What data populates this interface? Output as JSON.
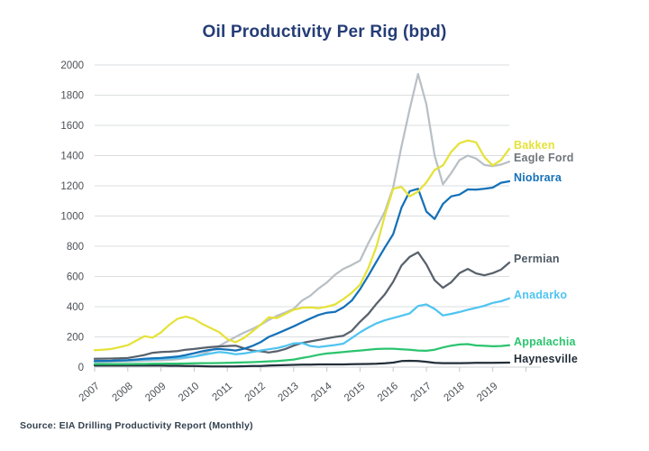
{
  "title": "Oil Productivity Per Rig (bpd)",
  "source": "Source: EIA Drilling Productivity Report (Monthly)",
  "colors": {
    "title_text": "#243d76",
    "axis_text": "#4b5157",
    "gridline": "#dadde0",
    "axis_line": "#ccd0d4",
    "tick_mark": "#c2c6ca",
    "source_text": "#33414f",
    "background": "#ffffff"
  },
  "chart_data": {
    "type": "line",
    "title": "Oil Productivity Per Rig (bpd)",
    "xlabel": "",
    "ylabel": "",
    "ylim": [
      0,
      2000
    ],
    "xlim": [
      2007,
      2019.5
    ],
    "y_ticks": [
      0,
      200,
      400,
      600,
      800,
      1000,
      1200,
      1400,
      1600,
      1800,
      2000
    ],
    "x_ticks": [
      "2007",
      "2008",
      "2009",
      "2010",
      "2011",
      "2012",
      "2013",
      "2014",
      "2015",
      "2016",
      "2017",
      "2018",
      "2019"
    ],
    "grid": "horizontal",
    "legend_position": "right-of-line-ends",
    "x": [
      2007,
      2007.25,
      2007.5,
      2007.75,
      2008,
      2008.25,
      2008.5,
      2008.75,
      2009,
      2009.25,
      2009.5,
      2009.75,
      2010,
      2010.25,
      2010.5,
      2010.75,
      2011,
      2011.25,
      2011.5,
      2011.75,
      2012,
      2012.25,
      2012.5,
      2012.75,
      2013,
      2013.25,
      2013.5,
      2013.75,
      2014,
      2014.25,
      2014.5,
      2014.75,
      2015,
      2015.25,
      2015.5,
      2015.75,
      2016,
      2016.25,
      2016.5,
      2016.75,
      2017,
      2017.25,
      2017.5,
      2017.75,
      2018,
      2018.25,
      2018.5,
      2018.75,
      2019,
      2019.25,
      2019.5
    ],
    "series": [
      {
        "name": "Bakken",
        "color": "#e5e239",
        "label_color": "#e5e239",
        "values": [
          112,
          115,
          120,
          132,
          145,
          175,
          205,
          195,
          230,
          280,
          320,
          335,
          318,
          285,
          258,
          232,
          185,
          165,
          192,
          235,
          280,
          330,
          325,
          352,
          380,
          392,
          396,
          390,
          400,
          415,
          450,
          492,
          545,
          655,
          800,
          1005,
          1180,
          1193,
          1130,
          1162,
          1222,
          1305,
          1335,
          1425,
          1482,
          1500,
          1488,
          1390,
          1335,
          1370,
          1445
        ]
      },
      {
        "name": "Eagle Ford",
        "color": "#b9c0c5",
        "label_color": "#6f767c",
        "values": [
          35,
          35,
          36,
          37,
          38,
          40,
          42,
          44,
          45,
          48,
          52,
          60,
          70,
          88,
          110,
          140,
          170,
          200,
          228,
          252,
          280,
          312,
          340,
          362,
          385,
          440,
          472,
          520,
          560,
          612,
          650,
          676,
          705,
          820,
          925,
          1030,
          1190,
          1460,
          1710,
          1940,
          1740,
          1400,
          1210,
          1285,
          1370,
          1400,
          1380,
          1338,
          1330,
          1340,
          1360
        ]
      },
      {
        "name": "Niobrara",
        "color": "#1471b8",
        "label_color": "#1471b8",
        "values": [
          40,
          41,
          42,
          44,
          46,
          50,
          55,
          58,
          60,
          65,
          70,
          80,
          92,
          105,
          115,
          120,
          116,
          110,
          121,
          140,
          165,
          200,
          222,
          246,
          270,
          296,
          321,
          345,
          360,
          366,
          395,
          440,
          515,
          605,
          700,
          792,
          880,
          1055,
          1165,
          1180,
          1030,
          980,
          1080,
          1130,
          1142,
          1176,
          1175,
          1180,
          1188,
          1220,
          1230
        ]
      },
      {
        "name": "Permian",
        "color": "#58616c",
        "label_color": "#4e5a64",
        "values": [
          55,
          56,
          57,
          58,
          60,
          70,
          80,
          95,
          100,
          102,
          106,
          115,
          120,
          127,
          133,
          137,
          140,
          142,
          125,
          110,
          105,
          97,
          105,
          120,
          142,
          160,
          170,
          180,
          190,
          200,
          208,
          240,
          300,
          352,
          420,
          482,
          565,
          672,
          730,
          760,
          680,
          575,
          525,
          562,
          622,
          650,
          620,
          608,
          622,
          645,
          692
        ]
      },
      {
        "name": "Anadarko",
        "color": "#4fc4f0",
        "label_color": "#4fc4f0",
        "values": [
          40,
          41,
          42,
          44,
          45,
          48,
          50,
          52,
          55,
          58,
          60,
          65,
          70,
          80,
          90,
          100,
          95,
          85,
          90,
          100,
          110,
          118,
          126,
          140,
          157,
          160,
          140,
          133,
          140,
          146,
          155,
          192,
          230,
          262,
          290,
          310,
          325,
          340,
          356,
          405,
          415,
          385,
          342,
          352,
          365,
          380,
          392,
          406,
          425,
          436,
          455
        ]
      },
      {
        "name": "Appalachia",
        "color": "#2bc46e",
        "label_color": "#2bc46e",
        "values": [
          20,
          20,
          20,
          20,
          20,
          21,
          21,
          22,
          22,
          23,
          23,
          24,
          25,
          26,
          26,
          27,
          28,
          30,
          31,
          33,
          35,
          38,
          40,
          45,
          50,
          60,
          70,
          82,
          90,
          95,
          100,
          105,
          110,
          115,
          120,
          122,
          122,
          118,
          115,
          110,
          108,
          115,
          130,
          142,
          150,
          152,
          143,
          141,
          138,
          140,
          145
        ]
      },
      {
        "name": "Haynesville",
        "color": "#232f3a",
        "label_color": "#232f3a",
        "values": [
          10,
          10,
          10,
          10,
          10,
          10,
          10,
          10,
          10,
          9,
          9,
          8,
          8,
          6,
          5,
          5,
          5,
          5,
          6,
          7,
          8,
          10,
          12,
          13,
          15,
          16,
          17,
          18,
          18,
          18,
          18,
          19,
          20,
          21,
          22,
          25,
          30,
          40,
          42,
          40,
          35,
          28,
          26,
          26,
          26,
          27,
          28,
          28,
          28,
          29,
          30
        ]
      }
    ]
  }
}
